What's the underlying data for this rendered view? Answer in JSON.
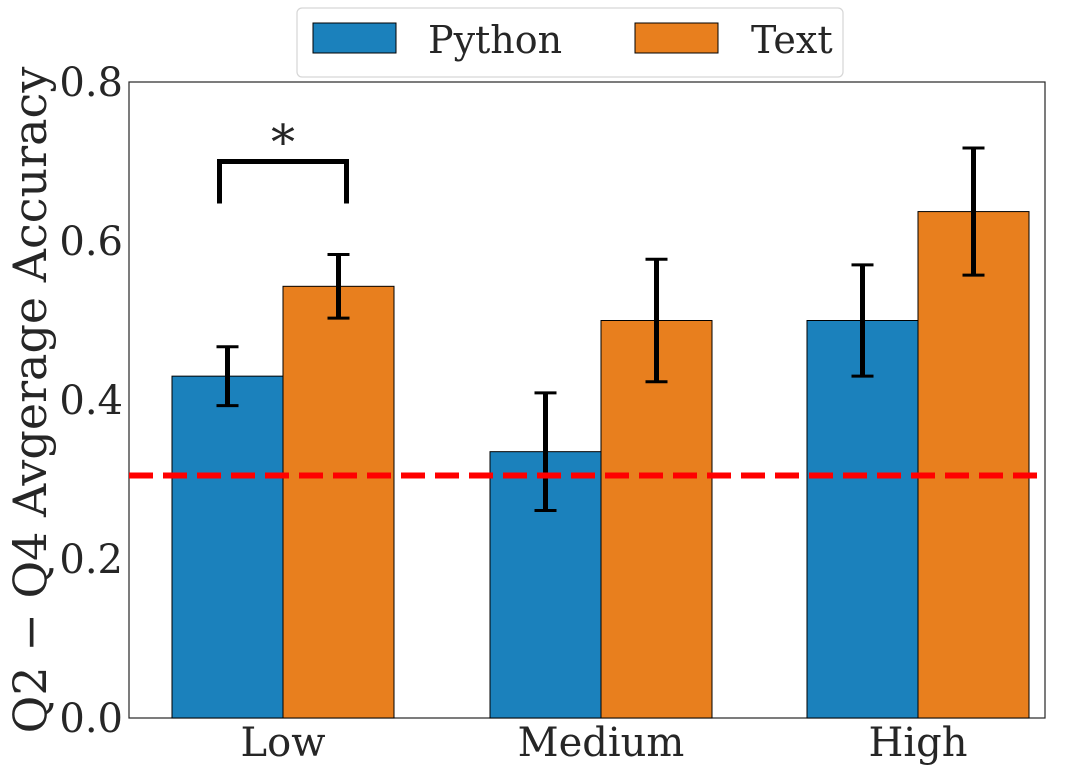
{
  "chart_data": {
    "type": "bar",
    "title": "",
    "xlabel": "",
    "ylabel": "Q2 − Q4 Avgerage Accuracy",
    "categories": [
      "Low",
      "Medium",
      "High"
    ],
    "ylim": [
      0,
      0.8
    ],
    "yticks": [
      0.0,
      0.2,
      0.4,
      0.6,
      0.8
    ],
    "ytick_labels": [
      "0.0",
      "0.2",
      "0.4",
      "0.6",
      "0.8"
    ],
    "series": [
      {
        "name": "Python",
        "color": "#1b81bc",
        "values": [
          0.43,
          0.335,
          0.5
        ],
        "errors": [
          0.037,
          0.074,
          0.07
        ]
      },
      {
        "name": "Text",
        "color": "#e87f1e",
        "values": [
          0.543,
          0.5,
          0.637
        ],
        "errors": [
          0.04,
          0.077,
          0.08
        ]
      }
    ],
    "reference_line": {
      "value": 0.305,
      "color": "#ff0000",
      "style": "dashed"
    },
    "annotations": [
      {
        "type": "significance",
        "label": "*",
        "category": "Low",
        "height": 0.7
      }
    ],
    "legend": {
      "position": "top-center",
      "columns": 2
    },
    "grid": false
  }
}
